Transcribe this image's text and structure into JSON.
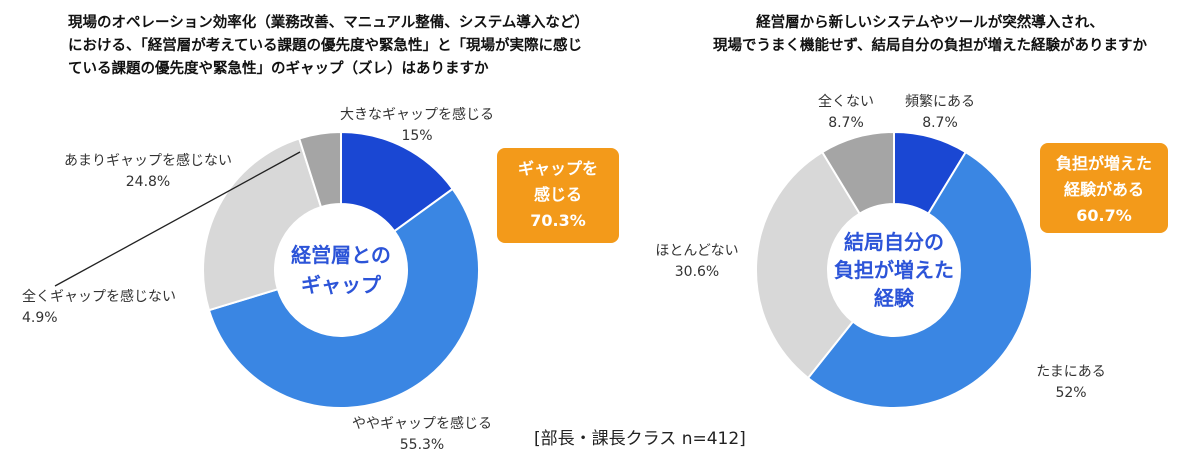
{
  "chart_data": [
    {
      "type": "pie",
      "title_lines": [
        "現場のオペレーション効率化（業務改善、マニュアル整備、システム導入など）",
        "における、「経営層が考えている課題の優先度や緊急性」と「現場が実際に感じ",
        "ている課題の優先度や緊急性」のギャップ（ズレ）はありますか"
      ],
      "center_label": [
        "経営層との",
        "ギャップ"
      ],
      "badge": [
        "ギャップを",
        "感じる",
        "70.3%"
      ],
      "slices": [
        {
          "label": "大きなギャップを感じる",
          "value": 15,
          "value_text": "15%",
          "color": "#1a47d3"
        },
        {
          "label": "ややギャップを感じる",
          "value": 55.3,
          "value_text": "55.3%",
          "color": "#3a86e3"
        },
        {
          "label": "あまりギャップを感じない",
          "value": 24.8,
          "value_text": "24.8%",
          "color": "#d8d8d8"
        },
        {
          "label": "全くギャップを感じない",
          "value": 4.9,
          "value_text": "4.9%",
          "color": "#a5a5a5"
        }
      ]
    },
    {
      "type": "pie",
      "title_lines": [
        "経営層から新しいシステムやツールが突然導入され、",
        "現場でうまく機能せず、結局自分の負担が増えた経験がありますか"
      ],
      "center_label": [
        "結局自分の",
        "負担が増えた",
        "経験"
      ],
      "badge": [
        "負担が増えた",
        "経験がある",
        "60.7%"
      ],
      "slices": [
        {
          "label": "頻繁にある",
          "value": 8.7,
          "value_text": "8.7%",
          "color": "#1a47d3"
        },
        {
          "label": "たまにある",
          "value": 52,
          "value_text": "52%",
          "color": "#3a86e3"
        },
        {
          "label": "ほとんどない",
          "value": 30.6,
          "value_text": "30.6%",
          "color": "#d8d8d8"
        },
        {
          "label": "全くない",
          "value": 8.7,
          "value_text": "8.7%",
          "color": "#a5a5a5"
        }
      ]
    }
  ],
  "colors": {
    "badge": "#f39a1a",
    "center_text": "#2c54d8",
    "leader_line": "#222222"
  },
  "footnote": "[部長・課長クラス n=412]"
}
